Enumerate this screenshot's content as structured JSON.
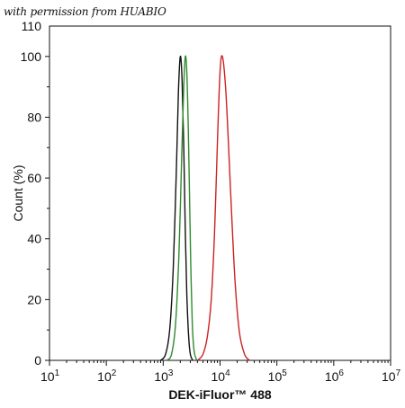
{
  "watermark": "with permission from HUABIO",
  "chart_data": {
    "type": "line",
    "title": "",
    "xlabel": "DEK-iFluor™ 488",
    "ylabel": "Count  (%)",
    "x_scale": "log",
    "xlim": [
      10,
      10000000
    ],
    "ylim": [
      0,
      110
    ],
    "grid": false,
    "x_ticks": [
      {
        "base": "10",
        "exp": "1"
      },
      {
        "base": "10",
        "exp": "2"
      },
      {
        "base": "10",
        "exp": "3"
      },
      {
        "base": "10",
        "exp": "4"
      },
      {
        "base": "10",
        "exp": "5"
      },
      {
        "base": "10",
        "exp": "6"
      },
      {
        "base": "10",
        "exp": "7"
      }
    ],
    "y_ticks": [
      0,
      20,
      40,
      60,
      80,
      100
    ],
    "y_top_label": "110",
    "series": [
      {
        "color": "#111111",
        "x": [
          900,
          1100,
          1300,
          1500,
          1700,
          1850,
          2000,
          2150,
          2300,
          2450,
          2600,
          2800,
          3000,
          3300
        ],
        "y": [
          0,
          2,
          10,
          30,
          62,
          88,
          100,
          92,
          70,
          42,
          22,
          8,
          2,
          0
        ]
      },
      {
        "color": "#2e8b2e",
        "x": [
          1150,
          1400,
          1650,
          1900,
          2100,
          2300,
          2450,
          2600,
          2750,
          2900,
          3050,
          3250,
          3500,
          3900
        ],
        "y": [
          0,
          2,
          12,
          36,
          65,
          90,
          100,
          95,
          78,
          55,
          32,
          12,
          3,
          0
        ]
      },
      {
        "color": "#cc2222",
        "x": [
          4000,
          5000,
          6000,
          7000,
          8000,
          9000,
          10000,
          11000,
          12500,
          14000,
          16000,
          18500,
          22000,
          27000,
          33000
        ],
        "y": [
          0,
          2,
          8,
          20,
          42,
          72,
          95,
          100,
          90,
          72,
          48,
          25,
          9,
          2,
          0
        ]
      }
    ]
  }
}
